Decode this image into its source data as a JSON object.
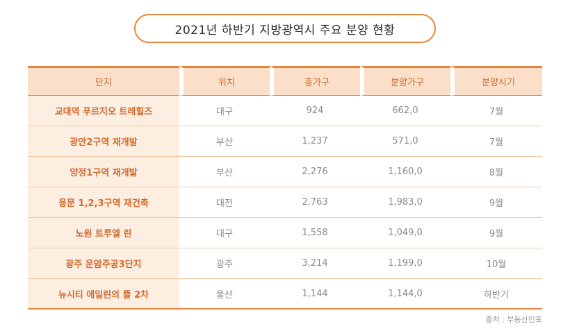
{
  "title": "2021년 하반기 지방광역시 주요 분양 현황",
  "table": {
    "headers": [
      "단지",
      "위치",
      "총가구",
      "분양가구",
      "분양시기"
    ],
    "rows": [
      [
        "교대역 푸르지오 트레힐즈",
        "대구",
        "924",
        "662,0",
        "7월"
      ],
      [
        "광안2구역 재개발",
        "부산",
        "1,237",
        "571,0",
        "7월"
      ],
      [
        "양정1구역 재개발",
        "부산",
        "2,276",
        "1,160,0",
        "8월"
      ],
      [
        "용문 1,2,3구역 재건축",
        "대전",
        "2,763",
        "1,983,0",
        "9월"
      ],
      [
        "노원 트루엘 린",
        "대구",
        "1,558",
        "1,049,0",
        "9월"
      ],
      [
        "광주 운암주공3단지",
        "광주",
        "3,214",
        "1,199,0",
        "10월"
      ],
      [
        "뉴시티 에일린의 뜰 2차",
        "울산",
        "1,144",
        "1,144,0",
        "하반기"
      ]
    ]
  },
  "source": "출처 : 부동산인포",
  "colors": {
    "accent": "#e8853a",
    "header_bg": "#fbdfc9",
    "name_bg": "#fdeee2",
    "header_text": "#d2692a"
  }
}
